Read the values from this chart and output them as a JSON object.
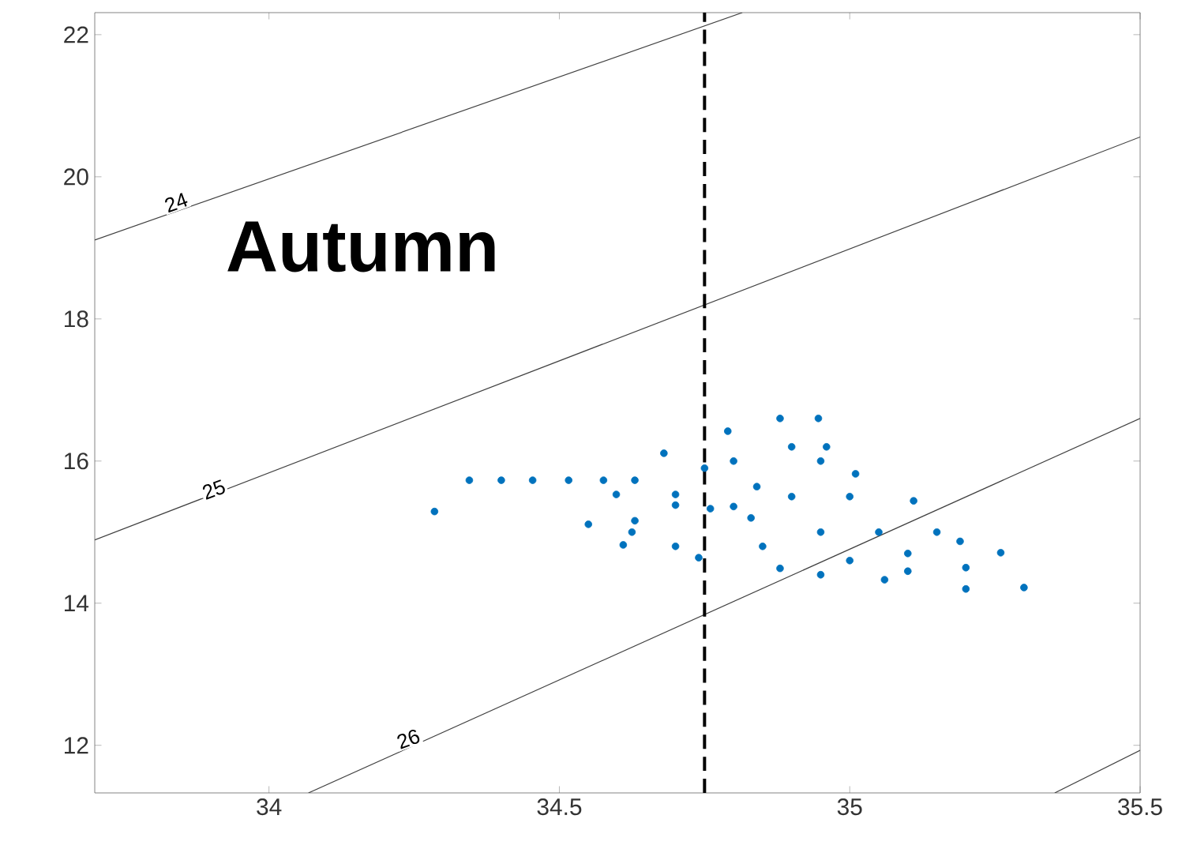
{
  "chart_data": {
    "type": "scatter",
    "annotations": [
      "Autumn",
      {
        "text": "24",
        "x": 33.84,
        "y": 19.64
      },
      {
        "text": "25",
        "x": 33.905,
        "y": 15.6
      },
      {
        "text": "26",
        "x": 34.24,
        "y": 12.09
      }
    ],
    "xlim": [
      33.7,
      35.5
    ],
    "ylim": [
      11.33,
      22.31
    ],
    "xticks": [
      34,
      34.5,
      35,
      35.5
    ],
    "yticks": [
      12,
      14,
      16,
      18,
      20,
      22
    ],
    "grid": false,
    "ref_lines": [
      {
        "axis": "x",
        "value": 34.75,
        "color": "#000000",
        "line_style": "dashed"
      }
    ],
    "series": [
      {
        "type": "line",
        "color": "#404040",
        "marker": "none",
        "x": [
          33.7,
          34.815
        ],
        "values": [
          19.11,
          22.31
        ]
      },
      {
        "type": "line",
        "color": "#404040",
        "marker": "none",
        "x": [
          33.7,
          35.5
        ],
        "values": [
          14.89,
          20.56
        ]
      },
      {
        "type": "line",
        "color": "#404040",
        "marker": "none",
        "x": [
          34.068,
          35.5
        ],
        "values": [
          11.33,
          16.6
        ]
      },
      {
        "type": "line",
        "color": "#404040",
        "marker": "none",
        "x": [
          35.353,
          35.5
        ],
        "values": [
          11.33,
          11.93
        ]
      },
      {
        "color": "#0072bd",
        "marker": "circle",
        "x": [
          34.285,
          34.345,
          34.4,
          34.454,
          34.516,
          34.576,
          34.598,
          34.7,
          34.76,
          34.8,
          34.63,
          34.68,
          34.79,
          34.88,
          34.946,
          34.96,
          35.01,
          35.11,
          35.19,
          35.26,
          35.3,
          35.2,
          35.06,
          34.88,
          34.74,
          34.61,
          34.625,
          34.55,
          34.63,
          34.83,
          34.84,
          34.7,
          34.9,
          34.95,
          35.0,
          34.9,
          35.05,
          35.1,
          35.0,
          34.95,
          35.2,
          34.8,
          34.75,
          34.85,
          34.7,
          35.15,
          34.95,
          35.1
        ],
        "values": [
          15.29,
          15.73,
          15.73,
          15.73,
          15.73,
          15.73,
          15.53,
          15.38,
          15.33,
          15.36,
          15.73,
          16.11,
          16.42,
          16.6,
          16.6,
          16.2,
          15.82,
          15.44,
          14.87,
          14.71,
          14.22,
          14.2,
          14.33,
          14.49,
          14.64,
          14.82,
          15.0,
          15.11,
          15.16,
          15.2,
          15.64,
          15.53,
          16.2,
          16.0,
          15.5,
          15.5,
          15.0,
          14.7,
          14.6,
          15.0,
          14.5,
          16.0,
          15.9,
          14.8,
          14.8,
          15.0,
          14.4,
          14.45
        ]
      }
    ]
  }
}
